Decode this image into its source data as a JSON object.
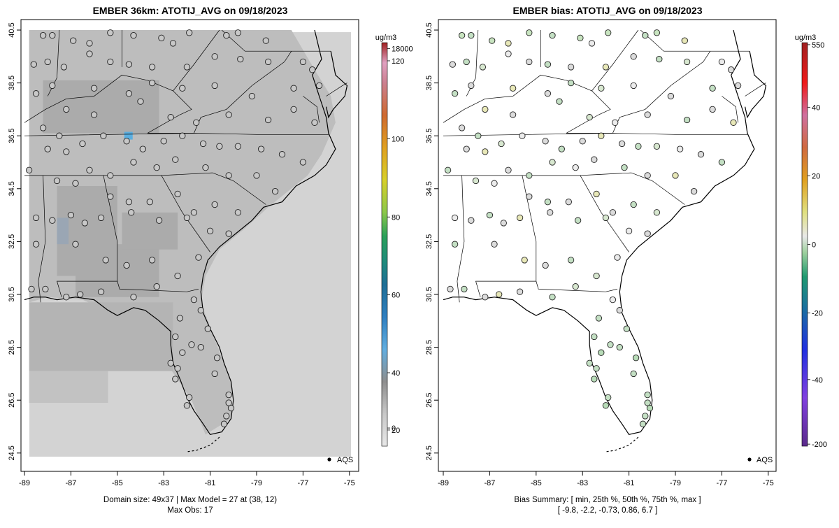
{
  "left_panel": {
    "title": "EMBER 36km: ATOTIJ_AVG on 09/18/2023",
    "x_ticks": [
      "-89",
      "-87",
      "-85",
      "-83",
      "-81",
      "-79",
      "-77",
      "-75"
    ],
    "y_ticks": [
      "40.5",
      "38.5",
      "36.5",
      "34.5",
      "32.5",
      "30.5",
      "28.5",
      "26.5",
      "24.5"
    ],
    "legend_label": "AQS",
    "footer_line1": "Domain size: 49x37 | Max Model = 27 at (38, 12)",
    "footer_line2": "Max Obs: 17",
    "colorbar": {
      "unit": "ug/m3",
      "labels": [
        "18000",
        "120",
        "100",
        "80",
        "60",
        "40",
        "20",
        "0"
      ],
      "label_values": [
        18000,
        120,
        100,
        80,
        60,
        40,
        20,
        0
      ]
    }
  },
  "right_panel": {
    "title": "EMBER bias: ATOTIJ_AVG on 09/18/2023",
    "x_ticks": [
      "-89",
      "-87",
      "-85",
      "-83",
      "-81",
      "-79",
      "-77",
      "-75"
    ],
    "y_ticks": [
      "40.5",
      "38.5",
      "36.5",
      "34.5",
      "32.5",
      "30.5",
      "28.5",
      "26.5",
      "24.5"
    ],
    "legend_label": "AQS",
    "footer_line1": "Bias Summary: [ min, 25th %, 50th %, 75th %, max ]",
    "footer_line2": "[ -9.8,   -2.2,   -0.73,   0.86,   6.7 ]",
    "colorbar": {
      "unit": "ug/m3",
      "labels": [
        "550",
        "40",
        "20",
        "0",
        "-20",
        "-40",
        "-200"
      ],
      "label_values": [
        550,
        40,
        20,
        0,
        -20,
        -40,
        -200
      ]
    }
  },
  "colors": {
    "model_background": "#d3d3d3",
    "model_mid": "#bdbdbd",
    "model_dark": "#ababab",
    "hotspot": "#5aaee0",
    "station_fill": "#c8c8c8",
    "bias_near_zero": "#dcdcdc",
    "bias_neg_small": "#c4e0c4",
    "bias_pos_small": "#e8e8b8"
  }
}
